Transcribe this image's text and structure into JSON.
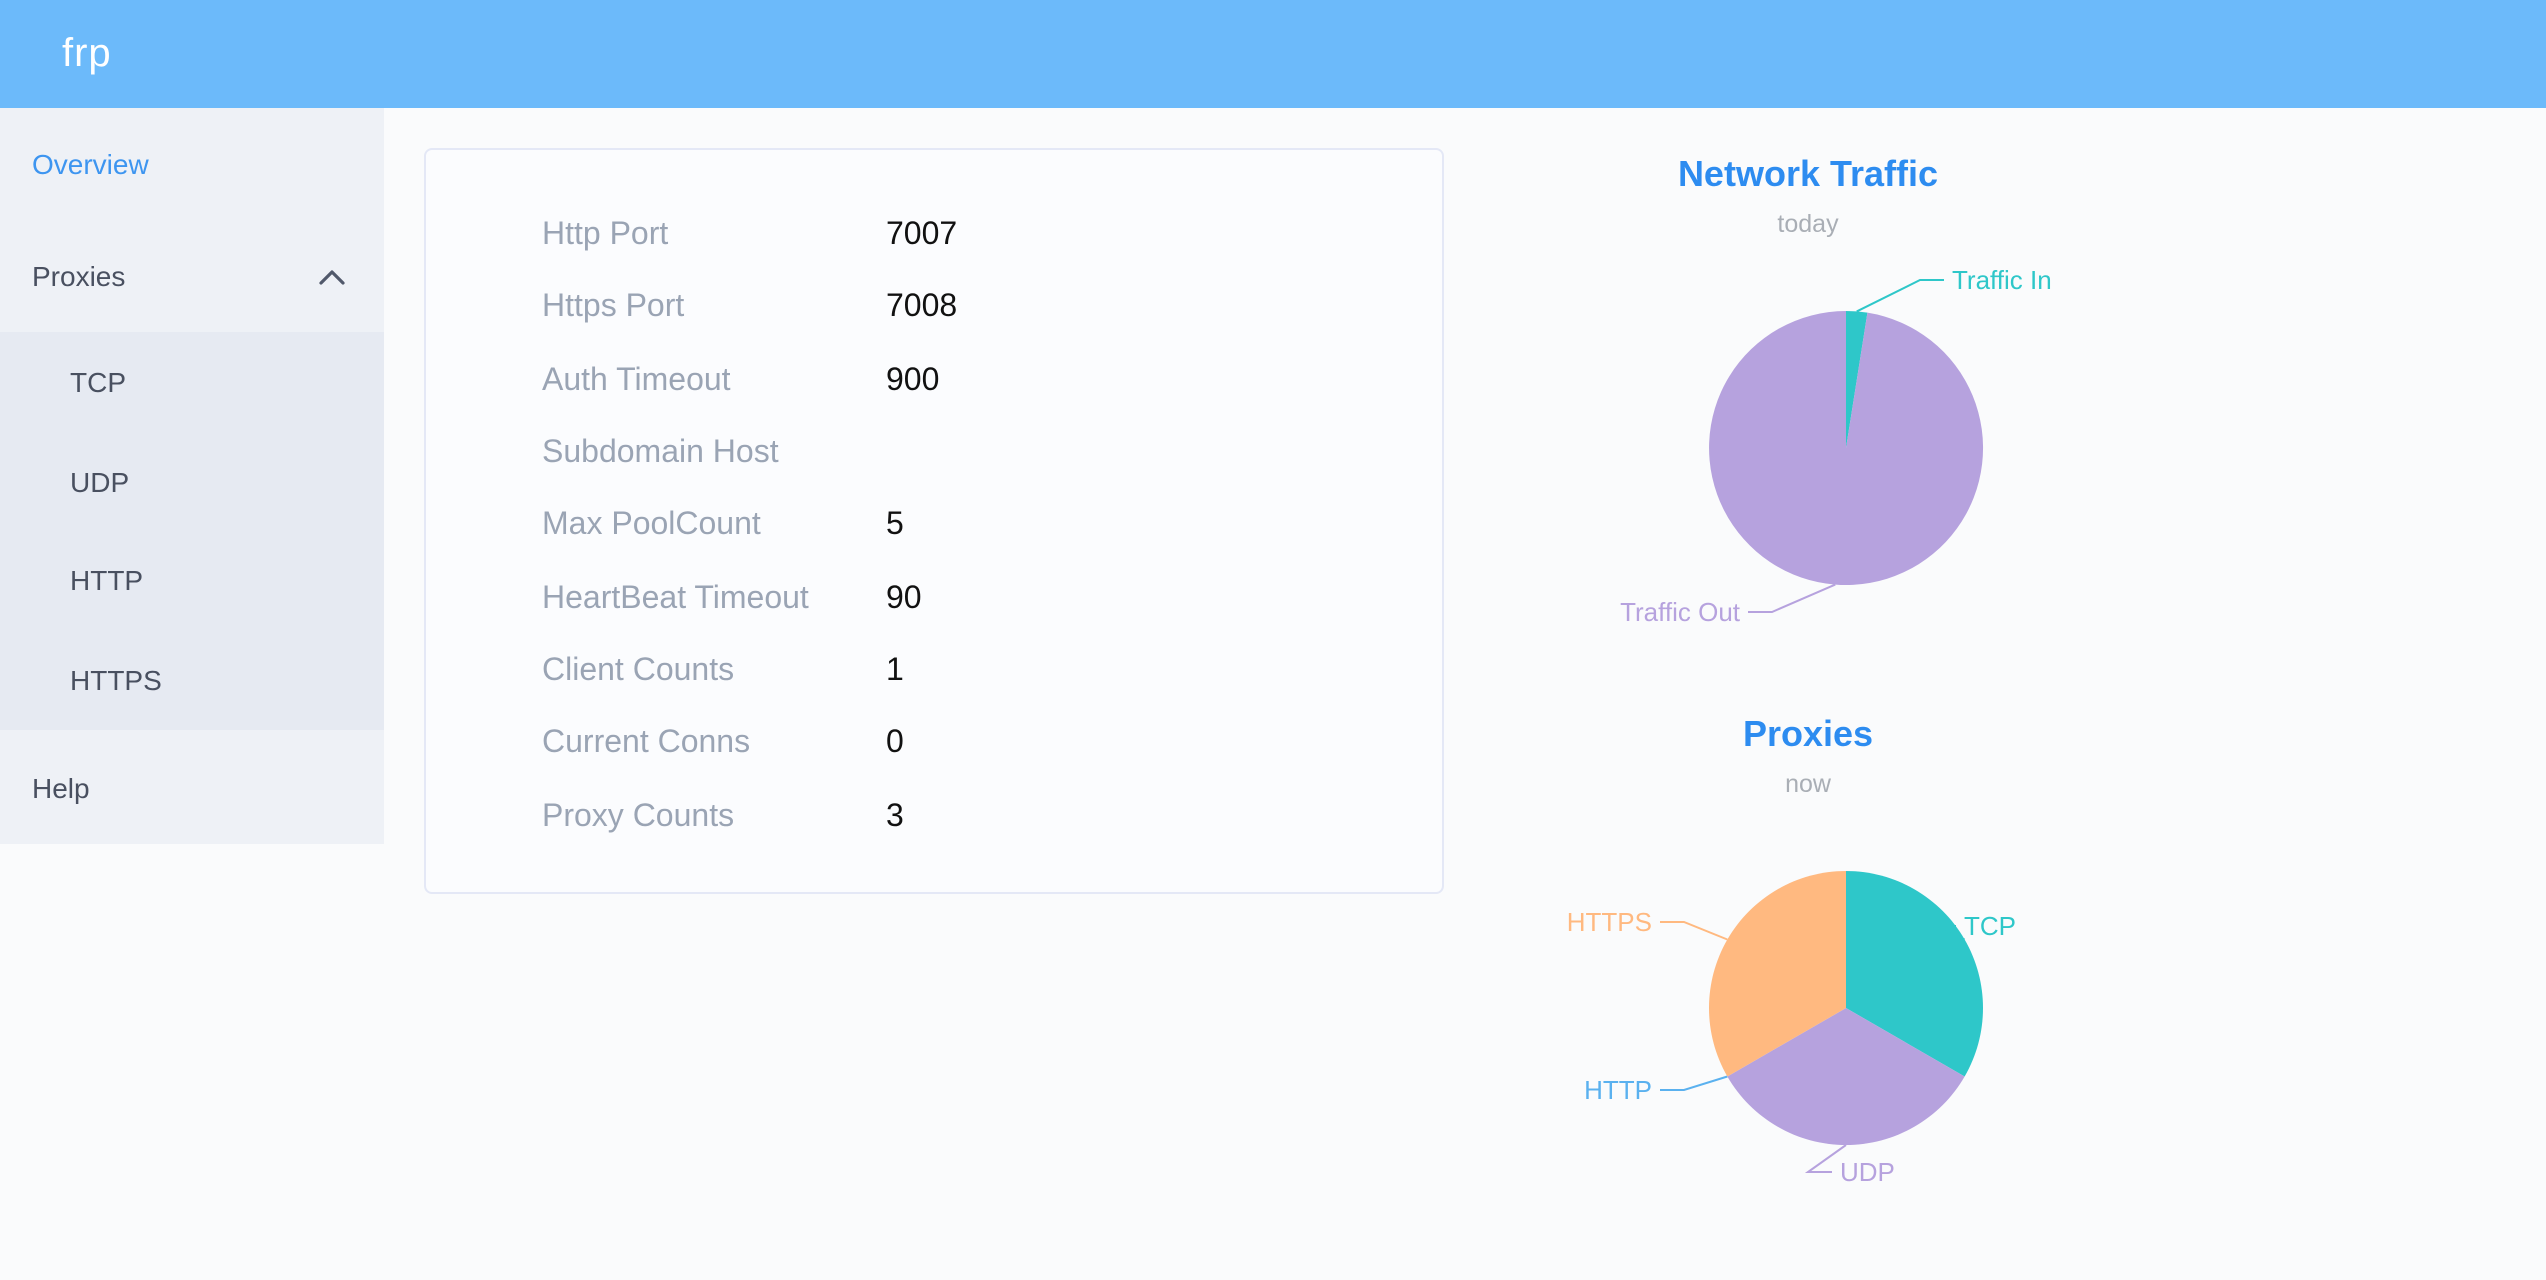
{
  "header": {
    "logo": "frp"
  },
  "sidebar": {
    "overview": "Overview",
    "proxies": "Proxies",
    "tcp": "TCP",
    "udp": "UDP",
    "http": "HTTP",
    "https": "HTTPS",
    "help": "Help"
  },
  "server_info": {
    "rows": [
      {
        "label": "Http Port",
        "value": "7007"
      },
      {
        "label": "Https Port",
        "value": "7008"
      },
      {
        "label": "Auth Timeout",
        "value": "900"
      },
      {
        "label": "Subdomain Host",
        "value": ""
      },
      {
        "label": "Max PoolCount",
        "value": "5"
      },
      {
        "label": "HeartBeat Timeout",
        "value": "90"
      },
      {
        "label": "Client Counts",
        "value": "1"
      },
      {
        "label": "Current Conns",
        "value": "0"
      },
      {
        "label": "Proxy Counts",
        "value": "3"
      }
    ]
  },
  "chart_data": [
    {
      "type": "pie",
      "title": "Network Traffic",
      "subtitle": "today",
      "legend_position": "none",
      "values_are": "percent_estimate",
      "series": [
        {
          "name": "Traffic In",
          "value": 2.5,
          "color": "#2ec7c9",
          "label": {
            "x": 272,
            "y": 80,
            "align": "left"
          }
        },
        {
          "name": "Traffic Out",
          "value": 97.5,
          "color": "#b6a2de",
          "label": {
            "x": 166,
            "y": 246,
            "align": "right"
          }
        }
      ]
    },
    {
      "type": "pie",
      "title": "Proxies",
      "subtitle": "now",
      "legend_position": "none",
      "values_are": "count",
      "series": [
        {
          "name": "TCP",
          "value": 1,
          "color": "#2ec7c9",
          "label": {
            "x": 278,
            "y": 123,
            "align": "left"
          }
        },
        {
          "name": "UDP",
          "value": 1,
          "color": "#b6a2de",
          "label": {
            "x": 216,
            "y": 246,
            "align": "left"
          }
        },
        {
          "name": "HTTP",
          "value": 0,
          "color": "#5ab1ef",
          "label": {
            "x": 122,
            "y": 205,
            "align": "right"
          }
        },
        {
          "name": "HTTPS",
          "value": 1,
          "color": "#ffb980",
          "label": {
            "x": 122,
            "y": 121,
            "align": "right"
          }
        }
      ]
    }
  ],
  "colors": {
    "header_bg": "#6cbafa",
    "sidebar_bg": "#eef1f6",
    "submenu_bg": "#e6eaf2",
    "page_bg": "#fafbfc",
    "active_menu": "#3d95f0",
    "menu_text": "#495060",
    "chart_title": "#2d8cf0",
    "chart_subtitle": "#a9aeb5",
    "info_label": "#9aa4b4",
    "info_value": "#111111",
    "card_border": "#e4e8f6",
    "card_bg": "#fbfcfe"
  }
}
